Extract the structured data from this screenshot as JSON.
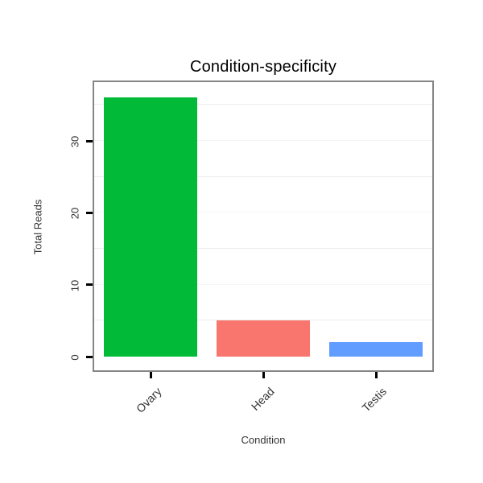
{
  "chart_data": {
    "type": "bar",
    "title": "Condition-specificity",
    "xlabel": "Condition",
    "ylabel": "Total Reads",
    "categories": [
      "Ovary",
      "Head",
      "Testis"
    ],
    "values": [
      36,
      5,
      2
    ],
    "colors": [
      "#00BA38",
      "#F8766D",
      "#619CFF"
    ],
    "yticks": [
      0,
      10,
      20,
      30
    ],
    "ytick_labels": [
      "0",
      "10",
      "20",
      "30"
    ],
    "ylim": [
      0,
      38.4
    ],
    "grid_minor": [
      5,
      15,
      25,
      35
    ],
    "grid_major": [
      10,
      20,
      30
    ],
    "grid_minor_color": "#ececec",
    "grid_major_color": "#f5f5f5",
    "panel_border_color": "#858585",
    "legend": "none",
    "background": "#ffffff"
  }
}
